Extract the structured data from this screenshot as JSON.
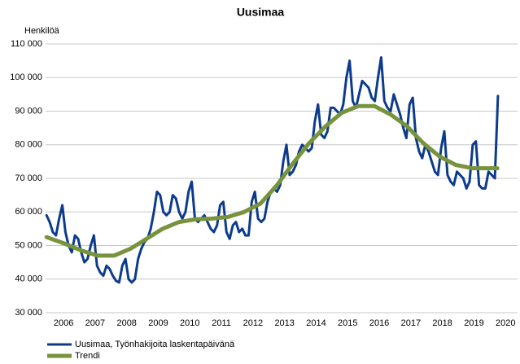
{
  "chart_data": {
    "type": "line",
    "title": "Uusimaa",
    "y_label": "Henkilöä",
    "xlim": [
      2005.43,
      2020.38
    ],
    "xticks": [
      2006,
      2007,
      2008,
      2009,
      2010,
      2011,
      2012,
      2013,
      2014,
      2015,
      2016,
      2017,
      2018,
      2019,
      2020
    ],
    "ylim": [
      30000,
      110000
    ],
    "yticks": [
      {
        "value": 30000,
        "label": "30 000"
      },
      {
        "value": 40000,
        "label": "40 000"
      },
      {
        "value": 50000,
        "label": "50 000"
      },
      {
        "value": 60000,
        "label": "60 000"
      },
      {
        "value": 70000,
        "label": "70 000"
      },
      {
        "value": 80000,
        "label": "80 000"
      },
      {
        "value": 90000,
        "label": "90 000"
      },
      {
        "value": 100000,
        "label": "100 000"
      },
      {
        "value": 110000,
        "label": "110 000"
      }
    ],
    "grid": true,
    "legend": "bottom-left",
    "series": [
      {
        "name": "Uusimaa, Työnhakijoita laskentapäivänä",
        "color": "#0d3b8c",
        "width": 3,
        "x": [
          2005.46,
          2005.56,
          2005.66,
          2005.76,
          2005.86,
          2005.96,
          2006.06,
          2006.16,
          2006.26,
          2006.36,
          2006.46,
          2006.56,
          2006.66,
          2006.76,
          2006.86,
          2006.96,
          2007.06,
          2007.16,
          2007.26,
          2007.36,
          2007.46,
          2007.56,
          2007.66,
          2007.76,
          2007.86,
          2007.96,
          2008.06,
          2008.16,
          2008.26,
          2008.36,
          2008.46,
          2008.56,
          2008.66,
          2008.76,
          2008.86,
          2008.96,
          2009.06,
          2009.16,
          2009.26,
          2009.36,
          2009.46,
          2009.56,
          2009.66,
          2009.76,
          2009.86,
          2009.96,
          2010.06,
          2010.16,
          2010.26,
          2010.36,
          2010.46,
          2010.56,
          2010.66,
          2010.76,
          2010.86,
          2010.96,
          2011.06,
          2011.16,
          2011.26,
          2011.36,
          2011.46,
          2011.56,
          2011.66,
          2011.76,
          2011.86,
          2011.96,
          2012.06,
          2012.16,
          2012.26,
          2012.36,
          2012.46,
          2012.56,
          2012.66,
          2012.76,
          2012.86,
          2012.96,
          2013.06,
          2013.16,
          2013.26,
          2013.36,
          2013.46,
          2013.56,
          2013.66,
          2013.76,
          2013.86,
          2013.96,
          2014.06,
          2014.16,
          2014.26,
          2014.36,
          2014.46,
          2014.56,
          2014.66,
          2014.76,
          2014.86,
          2014.96,
          2015.06,
          2015.16,
          2015.26,
          2015.36,
          2015.46,
          2015.56,
          2015.66,
          2015.76,
          2015.86,
          2015.96,
          2016.06,
          2016.16,
          2016.26,
          2016.36,
          2016.46,
          2016.56,
          2016.66,
          2016.76,
          2016.86,
          2016.96,
          2017.06,
          2017.16,
          2017.26,
          2017.36,
          2017.46,
          2017.56,
          2017.66,
          2017.76,
          2017.86,
          2017.96,
          2018.06,
          2018.16,
          2018.26,
          2018.36,
          2018.46,
          2018.56,
          2018.66,
          2018.76,
          2018.86,
          2018.96,
          2019.06,
          2019.16,
          2019.26,
          2019.36,
          2019.46,
          2019.56,
          2019.66,
          2019.76
        ],
        "values": [
          59000,
          57000,
          54000,
          53000,
          58000,
          62000,
          54000,
          50000,
          48000,
          53000,
          52000,
          48000,
          45000,
          46000,
          50000,
          53000,
          44000,
          42000,
          41000,
          44000,
          43000,
          41000,
          39500,
          39000,
          44000,
          46000,
          40000,
          39000,
          40000,
          46000,
          49000,
          51000,
          52000,
          55000,
          60000,
          66000,
          65000,
          60000,
          59000,
          60000,
          65000,
          64000,
          60000,
          58000,
          60000,
          66000,
          69000,
          58000,
          57000,
          58000,
          59000,
          57000,
          55000,
          54000,
          56000,
          62000,
          63000,
          54000,
          52000,
          56000,
          57000,
          54000,
          55000,
          53000,
          53000,
          63000,
          66000,
          58000,
          57000,
          58000,
          63000,
          66000,
          67000,
          66000,
          68000,
          75000,
          80000,
          71000,
          72000,
          74000,
          78000,
          80000,
          79000,
          78000,
          79000,
          87000,
          92000,
          83000,
          82000,
          84000,
          91000,
          91000,
          90000,
          89000,
          92000,
          100000,
          105000,
          93000,
          91000,
          95000,
          99000,
          98000,
          97000,
          94000,
          93000,
          100000,
          106000,
          93000,
          91000,
          90000,
          95000,
          92000,
          89000,
          85000,
          82000,
          92000,
          94000,
          82000,
          78000,
          76000,
          80000,
          78000,
          75000,
          72000,
          71000,
          79000,
          84000,
          71000,
          69000,
          68000,
          72000,
          71000,
          70000,
          67000,
          69000,
          80000,
          81000,
          68000,
          67000,
          67000,
          72000,
          71000,
          70000,
          94500
        ]
      },
      {
        "name": "Trendi",
        "color": "#77933c",
        "width": 5,
        "x": [
          2005.46,
          2006.05,
          2006.57,
          2007.08,
          2007.6,
          2008.11,
          2008.63,
          2009.14,
          2009.66,
          2010.18,
          2010.69,
          2011.21,
          2011.72,
          2012.24,
          2012.76,
          2013.27,
          2013.78,
          2014.3,
          2014.81,
          2015.33,
          2015.85,
          2016.36,
          2016.88,
          2017.39,
          2017.91,
          2018.42,
          2018.94,
          2019.46,
          2019.74
        ],
        "values": [
          52500,
          50500,
          48500,
          47000,
          47000,
          49000,
          52000,
          55000,
          57000,
          57800,
          58000,
          58500,
          60000,
          62500,
          68000,
          74500,
          80500,
          85500,
          89500,
          91500,
          91500,
          89000,
          85500,
          80500,
          76500,
          74000,
          73000,
          73000,
          73000
        ]
      }
    ]
  }
}
